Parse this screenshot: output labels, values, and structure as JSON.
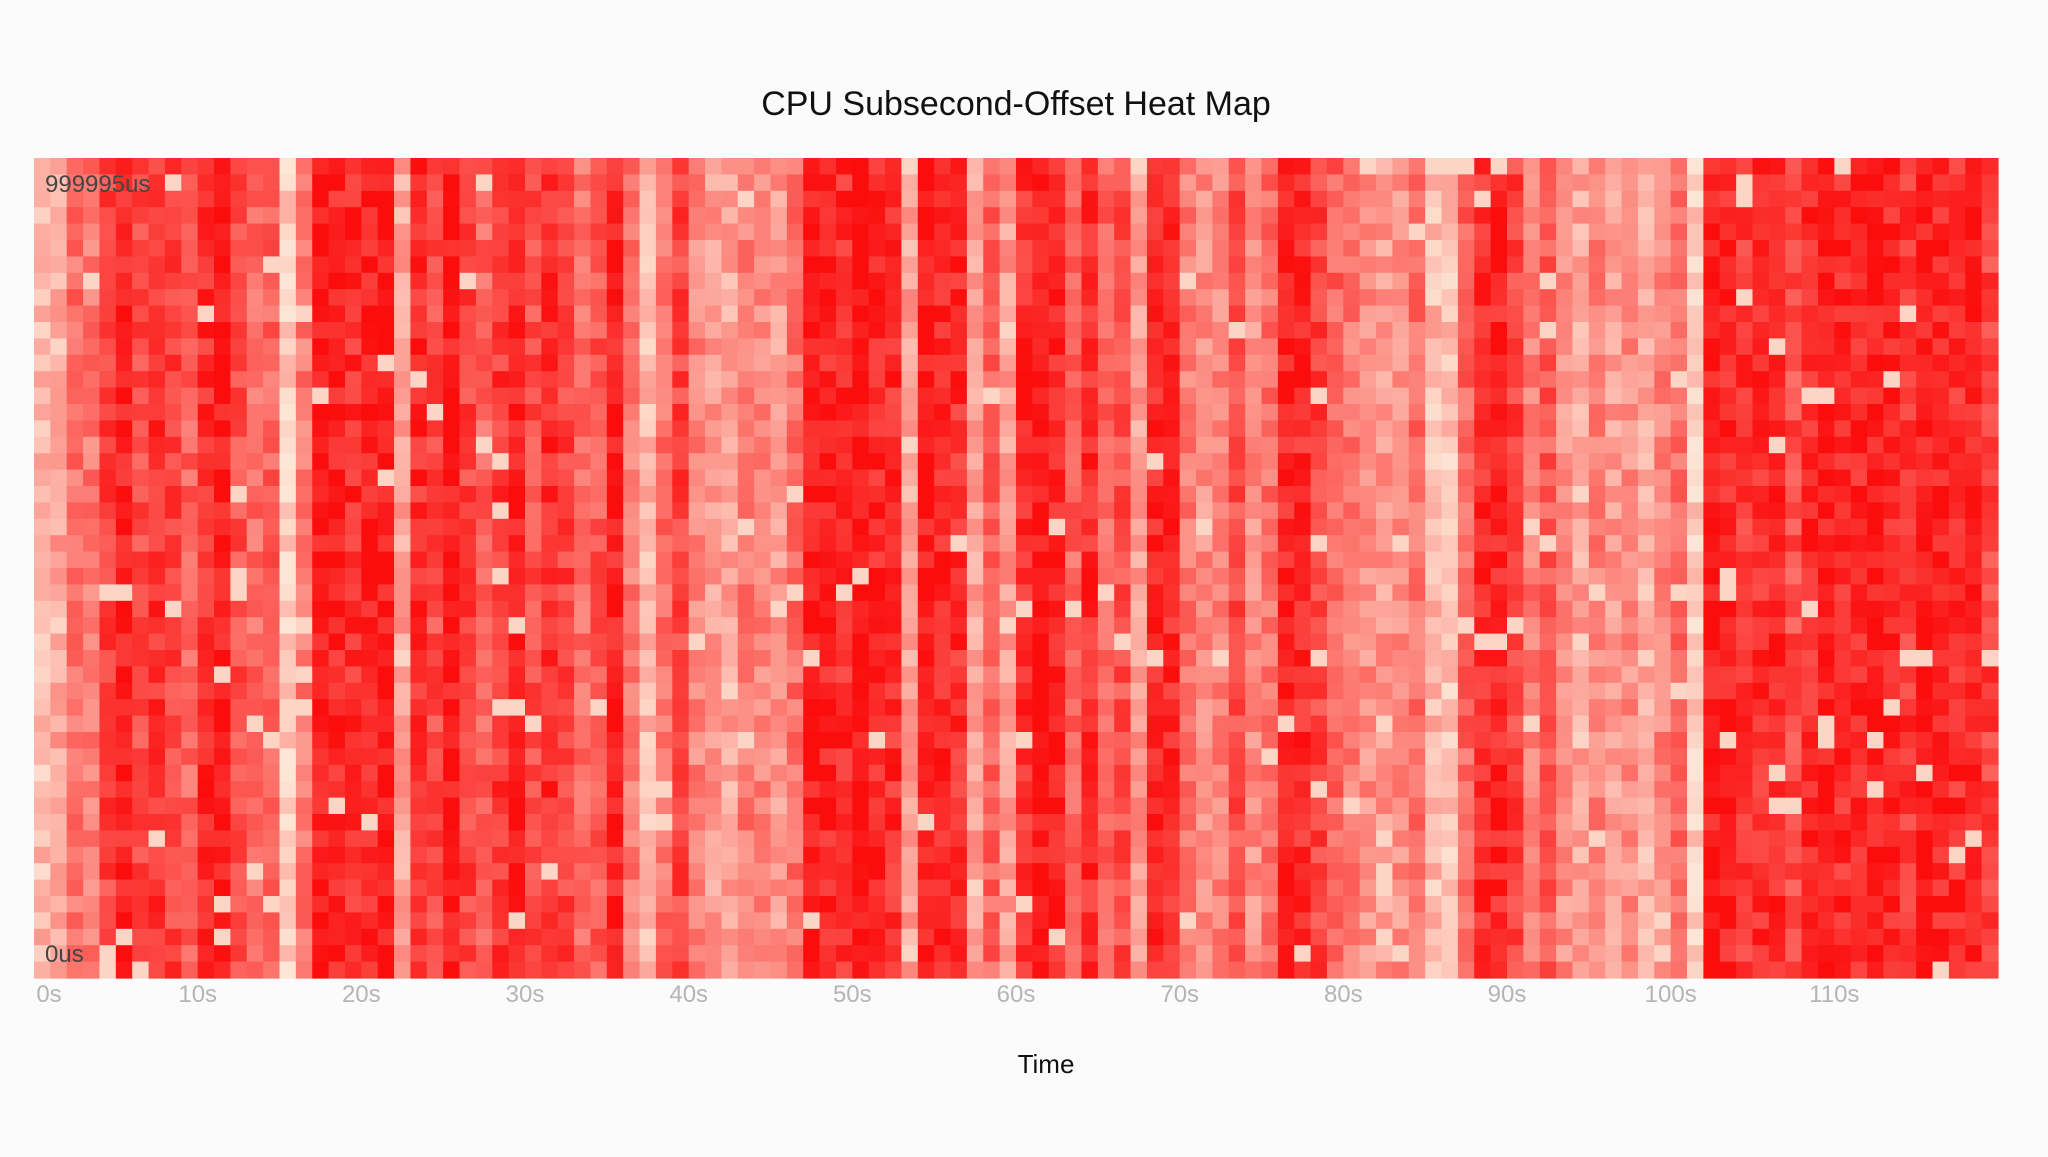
{
  "chart_data": {
    "type": "heatmap",
    "title": "CPU Subsecond-Offset Heat Map",
    "xlabel": "Time",
    "ylabel": "",
    "x_unit": "s",
    "x_range": [
      0,
      120
    ],
    "x_ticks": [
      0,
      10,
      20,
      30,
      40,
      50,
      60,
      70,
      80,
      90,
      100,
      110
    ],
    "x_tick_labels": [
      "0s",
      "10s",
      "20s",
      "30s",
      "40s",
      "50s",
      "60s",
      "70s",
      "80s",
      "90s",
      "100s",
      "110s"
    ],
    "y_range": [
      0,
      999995
    ],
    "y_unit": "us",
    "y_label_top": "999995us",
    "y_label_bottom": "0us",
    "columns": 120,
    "rows": 50,
    "column_intensity": [
      0.2,
      0.3,
      0.55,
      0.5,
      0.75,
      0.9,
      0.7,
      0.85,
      0.75,
      0.6,
      0.85,
      0.95,
      0.7,
      0.55,
      0.6,
      0.1,
      0.5,
      0.95,
      0.9,
      0.85,
      0.9,
      0.95,
      0.3,
      0.85,
      0.7,
      0.95,
      0.75,
      0.6,
      0.8,
      0.9,
      0.7,
      0.85,
      0.75,
      0.55,
      0.65,
      0.9,
      0.5,
      0.2,
      0.55,
      0.75,
      0.45,
      0.35,
      0.3,
      0.5,
      0.45,
      0.35,
      0.55,
      0.95,
      0.9,
      0.85,
      1.0,
      0.9,
      0.85,
      0.3,
      0.95,
      0.9,
      0.85,
      0.3,
      0.6,
      0.35,
      0.85,
      0.95,
      0.9,
      0.6,
      0.85,
      0.6,
      0.7,
      0.35,
      0.9,
      0.85,
      0.5,
      0.4,
      0.45,
      0.7,
      0.4,
      0.55,
      0.9,
      0.85,
      0.75,
      0.6,
      0.5,
      0.4,
      0.35,
      0.4,
      0.55,
      0.2,
      0.15,
      0.6,
      0.85,
      0.9,
      0.75,
      0.5,
      0.65,
      0.4,
      0.3,
      0.45,
      0.35,
      0.4,
      0.25,
      0.45,
      0.55,
      0.1,
      0.95,
      0.9,
      0.8,
      0.85,
      0.9,
      0.7,
      0.85,
      0.95,
      0.85,
      0.9,
      0.95,
      0.9,
      0.8,
      0.95,
      0.9,
      0.85,
      0.9,
      0.75
    ],
    "colorscale": {
      "low": "#fde6d6",
      "high": "#fb0d0d"
    }
  },
  "colors": {
    "background": "#fbfbfb",
    "title": "#111111",
    "tick_label": "#b5b5b5",
    "axis_title": "#111111",
    "y_tick_label": "#444444"
  }
}
